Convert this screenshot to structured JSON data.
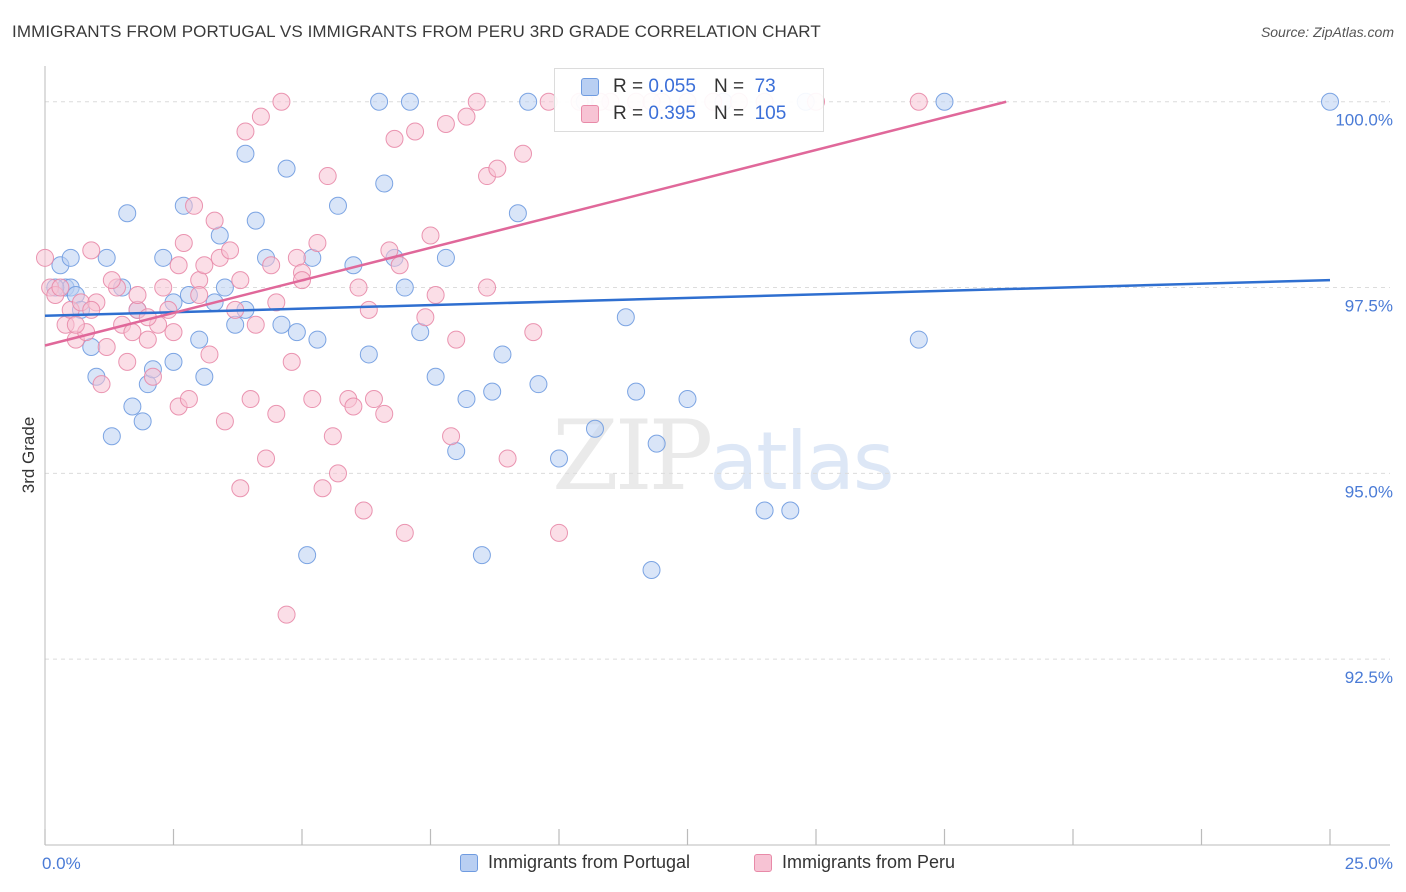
{
  "header": {
    "title": "IMMIGRANTS FROM PORTUGAL VS IMMIGRANTS FROM PERU 3RD GRADE CORRELATION CHART",
    "source": "Source: ZipAtlas.com"
  },
  "watermark": {
    "zip": "ZIP",
    "atlas": "atlas"
  },
  "stats": [
    {
      "r_label": "R =",
      "r_value": "0.055",
      "n_label": "N =",
      "n_value": "73",
      "color": "#6f9be0",
      "fill": "#b9cff2"
    },
    {
      "r_label": "R =",
      "r_value": "0.395",
      "n_label": "N =",
      "n_value": "105",
      "color": "#e88aa8",
      "fill": "#f7c3d4"
    }
  ],
  "legend": [
    {
      "label": "Immigrants from Portugal",
      "color": "#6f9be0",
      "fill": "#b9cff2"
    },
    {
      "label": "Immigrants from Peru",
      "color": "#e88aa8",
      "fill": "#f7c3d4"
    }
  ],
  "chart_data": {
    "type": "scatter",
    "title": "IMMIGRANTS FROM PORTUGAL VS IMMIGRANTS FROM PERU 3RD GRADE CORRELATION CHART",
    "xlabel": "",
    "ylabel": "3rd Grade",
    "xlim": [
      0,
      25
    ],
    "ylim": [
      90.0,
      100.4
    ],
    "x_tick_labels": [
      "0.0%",
      "25.0%"
    ],
    "y_ticks": [
      92.5,
      95.0,
      97.5,
      100.0
    ],
    "y_tick_labels": [
      "92.5%",
      "95.0%",
      "97.5%",
      "100.0%"
    ],
    "grid": true,
    "series": [
      {
        "name": "Immigrants from Portugal",
        "color": "#6f9be0",
        "fill": "#b9cff2",
        "trend": {
          "x": [
            0,
            25
          ],
          "y": [
            97.12,
            97.6
          ]
        },
        "points": [
          [
            0.3,
            97.8
          ],
          [
            0.4,
            97.5
          ],
          [
            0.5,
            97.9
          ],
          [
            0.5,
            97.5
          ],
          [
            0.6,
            97.4
          ],
          [
            0.7,
            97.2
          ],
          [
            0.9,
            96.7
          ],
          [
            1.0,
            96.3
          ],
          [
            1.2,
            97.9
          ],
          [
            1.3,
            95.5
          ],
          [
            1.5,
            97.5
          ],
          [
            1.6,
            98.5
          ],
          [
            1.7,
            95.9
          ],
          [
            1.8,
            97.2
          ],
          [
            1.9,
            95.7
          ],
          [
            2.0,
            96.2
          ],
          [
            2.1,
            96.4
          ],
          [
            2.3,
            97.9
          ],
          [
            2.5,
            97.3
          ],
          [
            2.5,
            96.5
          ],
          [
            2.7,
            98.6
          ],
          [
            2.8,
            97.4
          ],
          [
            3.0,
            96.8
          ],
          [
            3.1,
            96.3
          ],
          [
            3.3,
            97.3
          ],
          [
            3.4,
            98.2
          ],
          [
            3.5,
            97.5
          ],
          [
            3.7,
            97.0
          ],
          [
            3.9,
            99.3
          ],
          [
            3.9,
            97.2
          ],
          [
            4.1,
            98.4
          ],
          [
            4.3,
            97.9
          ],
          [
            4.6,
            97.0
          ],
          [
            4.7,
            99.1
          ],
          [
            4.9,
            96.9
          ],
          [
            5.1,
            93.9
          ],
          [
            5.2,
            97.9
          ],
          [
            5.3,
            96.8
          ],
          [
            5.7,
            98.6
          ],
          [
            6.0,
            97.8
          ],
          [
            6.3,
            96.6
          ],
          [
            6.5,
            100.0
          ],
          [
            6.6,
            98.9
          ],
          [
            6.8,
            97.9
          ],
          [
            7.0,
            97.5
          ],
          [
            7.1,
            100.0
          ],
          [
            7.3,
            96.9
          ],
          [
            7.6,
            96.3
          ],
          [
            7.8,
            97.9
          ],
          [
            8.0,
            95.3
          ],
          [
            8.2,
            96.0
          ],
          [
            8.5,
            93.9
          ],
          [
            8.7,
            96.1
          ],
          [
            8.9,
            96.6
          ],
          [
            9.2,
            98.5
          ],
          [
            9.4,
            100.0
          ],
          [
            9.6,
            96.2
          ],
          [
            10.0,
            95.2
          ],
          [
            10.5,
            100.0
          ],
          [
            10.7,
            95.6
          ],
          [
            11.3,
            97.1
          ],
          [
            11.5,
            96.1
          ],
          [
            11.8,
            93.7
          ],
          [
            11.9,
            95.4
          ],
          [
            12.5,
            96.0
          ],
          [
            13.2,
            100.0
          ],
          [
            14.0,
            94.5
          ],
          [
            14.5,
            94.5
          ],
          [
            14.8,
            100.0
          ],
          [
            17.0,
            96.8
          ],
          [
            17.5,
            100.0
          ],
          [
            25.0,
            100.0
          ],
          [
            0.2,
            97.5
          ]
        ]
      },
      {
        "name": "Immigrants from Peru",
        "color": "#e88aa8",
        "fill": "#f7c3d4",
        "trend": {
          "x": [
            0,
            18.7
          ],
          "y": [
            96.72,
            100.0
          ]
        },
        "points": [
          [
            0.0,
            97.9
          ],
          [
            0.1,
            97.5
          ],
          [
            0.2,
            97.4
          ],
          [
            0.3,
            97.5
          ],
          [
            0.4,
            97.0
          ],
          [
            0.5,
            97.2
          ],
          [
            0.6,
            96.8
          ],
          [
            0.7,
            97.3
          ],
          [
            0.8,
            96.9
          ],
          [
            0.9,
            98.0
          ],
          [
            1.0,
            97.3
          ],
          [
            1.1,
            96.2
          ],
          [
            1.2,
            96.7
          ],
          [
            1.4,
            97.5
          ],
          [
            1.5,
            97.0
          ],
          [
            1.6,
            96.5
          ],
          [
            1.7,
            96.9
          ],
          [
            1.8,
            97.2
          ],
          [
            2.0,
            96.8
          ],
          [
            2.1,
            96.3
          ],
          [
            2.2,
            97.0
          ],
          [
            2.3,
            97.5
          ],
          [
            2.4,
            97.2
          ],
          [
            2.5,
            96.9
          ],
          [
            2.6,
            95.9
          ],
          [
            2.7,
            98.1
          ],
          [
            2.8,
            96.0
          ],
          [
            2.9,
            98.6
          ],
          [
            3.0,
            97.6
          ],
          [
            3.1,
            97.8
          ],
          [
            3.2,
            96.6
          ],
          [
            3.3,
            98.4
          ],
          [
            3.4,
            97.9
          ],
          [
            3.5,
            95.7
          ],
          [
            3.6,
            98.0
          ],
          [
            3.7,
            97.2
          ],
          [
            3.8,
            94.8
          ],
          [
            3.9,
            99.6
          ],
          [
            4.0,
            96.0
          ],
          [
            4.1,
            97.0
          ],
          [
            4.2,
            99.8
          ],
          [
            4.3,
            95.2
          ],
          [
            4.4,
            97.8
          ],
          [
            4.5,
            95.8
          ],
          [
            4.6,
            100.0
          ],
          [
            4.7,
            93.1
          ],
          [
            4.8,
            96.5
          ],
          [
            4.9,
            97.9
          ],
          [
            5.0,
            97.7
          ],
          [
            5.2,
            96.0
          ],
          [
            5.3,
            98.1
          ],
          [
            5.4,
            94.8
          ],
          [
            5.5,
            99.0
          ],
          [
            5.6,
            95.5
          ],
          [
            5.7,
            95.0
          ],
          [
            5.9,
            96.0
          ],
          [
            6.0,
            95.9
          ],
          [
            6.1,
            97.5
          ],
          [
            6.2,
            94.5
          ],
          [
            6.4,
            96.0
          ],
          [
            6.6,
            95.8
          ],
          [
            6.7,
            98.0
          ],
          [
            6.8,
            99.5
          ],
          [
            6.9,
            97.8
          ],
          [
            7.0,
            94.2
          ],
          [
            7.2,
            99.6
          ],
          [
            7.5,
            98.2
          ],
          [
            7.6,
            97.4
          ],
          [
            7.8,
            99.7
          ],
          [
            7.9,
            95.5
          ],
          [
            8.0,
            96.8
          ],
          [
            8.2,
            99.8
          ],
          [
            8.4,
            100.0
          ],
          [
            8.6,
            99.0
          ],
          [
            8.8,
            99.1
          ],
          [
            9.0,
            95.2
          ],
          [
            9.3,
            99.3
          ],
          [
            9.5,
            96.9
          ],
          [
            10.0,
            94.2
          ],
          [
            10.4,
            100.0
          ],
          [
            11.0,
            100.0
          ],
          [
            11.5,
            100.0
          ],
          [
            12.0,
            100.0
          ],
          [
            12.5,
            100.0
          ],
          [
            13.0,
            100.0
          ],
          [
            13.5,
            100.0
          ],
          [
            14.0,
            100.0
          ],
          [
            15.0,
            100.0
          ],
          [
            17.0,
            100.0
          ],
          [
            2.0,
            97.1
          ],
          [
            3.0,
            97.4
          ],
          [
            4.5,
            97.3
          ],
          [
            5.0,
            97.6
          ],
          [
            1.3,
            97.6
          ],
          [
            0.6,
            97.0
          ],
          [
            2.6,
            97.8
          ],
          [
            1.8,
            97.4
          ],
          [
            3.8,
            97.6
          ],
          [
            0.9,
            97.2
          ],
          [
            6.3,
            97.2
          ],
          [
            7.4,
            97.1
          ],
          [
            8.6,
            97.5
          ],
          [
            9.8,
            100.0
          ],
          [
            10.8,
            100.0
          ],
          [
            11.8,
            100.0
          ]
        ]
      }
    ]
  }
}
